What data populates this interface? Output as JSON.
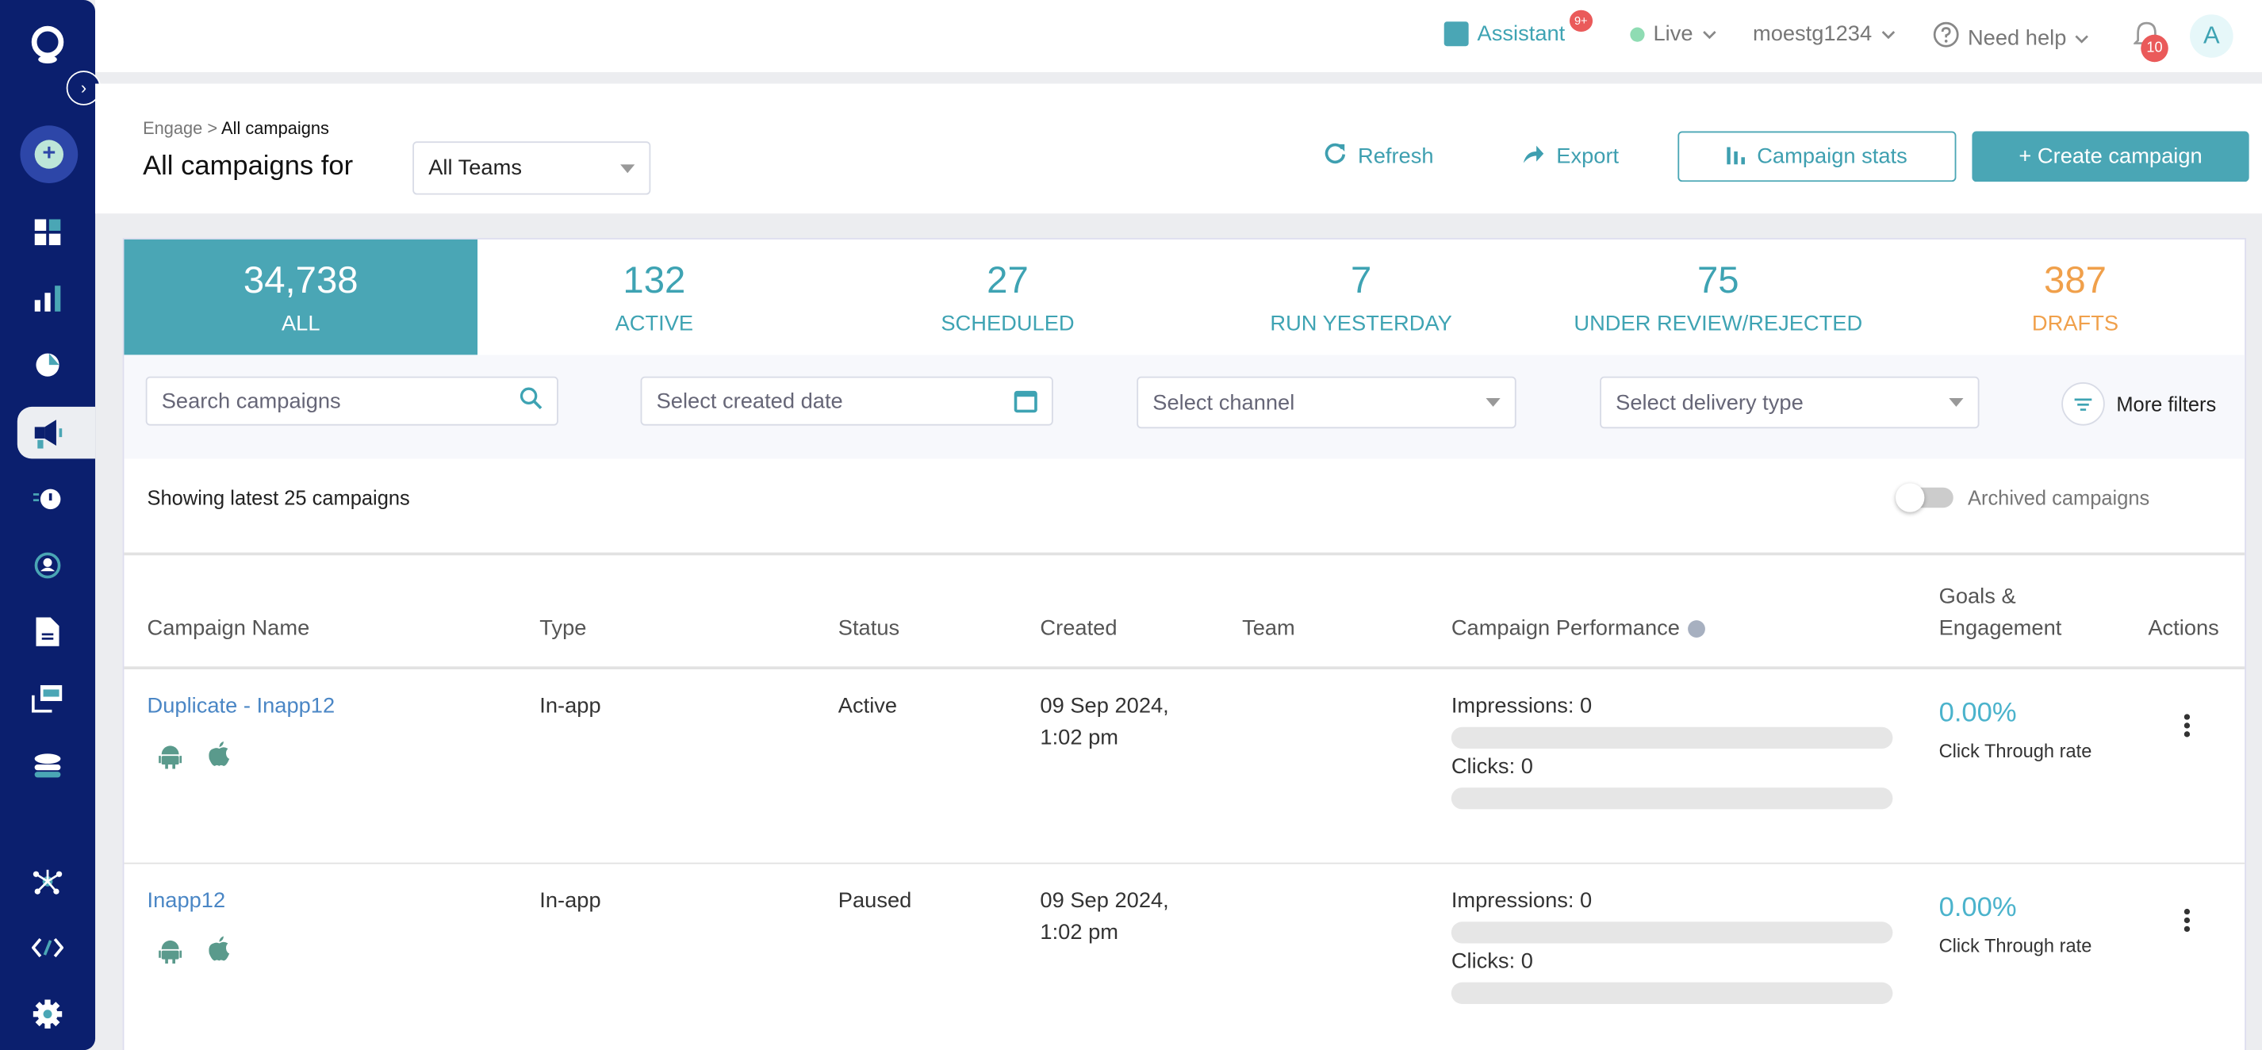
{
  "sidebar": {
    "items": [
      "profile",
      "create",
      "dashboard",
      "analytics",
      "segments",
      "engage",
      "flows",
      "personalize",
      "content",
      "cards",
      "data",
      "integrations",
      "developer",
      "settings"
    ]
  },
  "topbar": {
    "assistant": "Assistant",
    "assistant_badge": "9+",
    "env": "Live",
    "account": "moestg1234",
    "help": "Need help",
    "notif_count": "10",
    "avatar": "A"
  },
  "colors": {
    "sidebar": "#0b1f6e",
    "accent": "#4aa6b5",
    "drafts": "#f0a04b",
    "badge": "#ea5a5a",
    "live": "#8fdcb3"
  },
  "header": {
    "breadcrumb_parent": "Engage",
    "breadcrumb_sep": ">",
    "breadcrumb_current": "All campaigns",
    "title": "All campaigns for",
    "team_select": "All Teams",
    "refresh": "Refresh",
    "export": "Export",
    "stats": "Campaign stats",
    "create": "+ Create campaign"
  },
  "stats": [
    {
      "count": "34,738",
      "label": "All"
    },
    {
      "count": "132",
      "label": "Active"
    },
    {
      "count": "27",
      "label": "Scheduled"
    },
    {
      "count": "7",
      "label": "Run yesterday"
    },
    {
      "count": "75",
      "label": "Under review/rejected"
    },
    {
      "count": "387",
      "label": "Drafts"
    }
  ],
  "filters": {
    "search_placeholder": "Search campaigns",
    "date_placeholder": "Select created date",
    "channel_placeholder": "Select channel",
    "delivery_placeholder": "Select delivery type",
    "more": "More filters"
  },
  "list": {
    "showing": "Showing latest 25 campaigns",
    "archived": "Archived campaigns",
    "archived_on": false
  },
  "table": {
    "headers": [
      "Campaign Name",
      "Type",
      "Status",
      "Created",
      "Team",
      "Campaign Performance",
      "Goals &",
      "Engagement",
      "Actions"
    ],
    "rows": [
      {
        "name": "Duplicate - Inapp12",
        "type": "In-app",
        "status": "Active",
        "created1": "09 Sep 2024,",
        "created2": "1:02 pm",
        "team": "",
        "impressions": "Impressions: 0",
        "clicks": "Clicks: 0",
        "ctr": "0.00%",
        "ctr_label": "Click Through rate"
      },
      {
        "name": "Inapp12",
        "type": "In-app",
        "status": "Paused",
        "created1": "09 Sep 2024,",
        "created2": "1:02 pm",
        "team": "",
        "impressions": "Impressions: 0",
        "clicks": "Clicks: 0",
        "ctr": "0.00%",
        "ctr_label": "Click Through rate"
      }
    ]
  }
}
